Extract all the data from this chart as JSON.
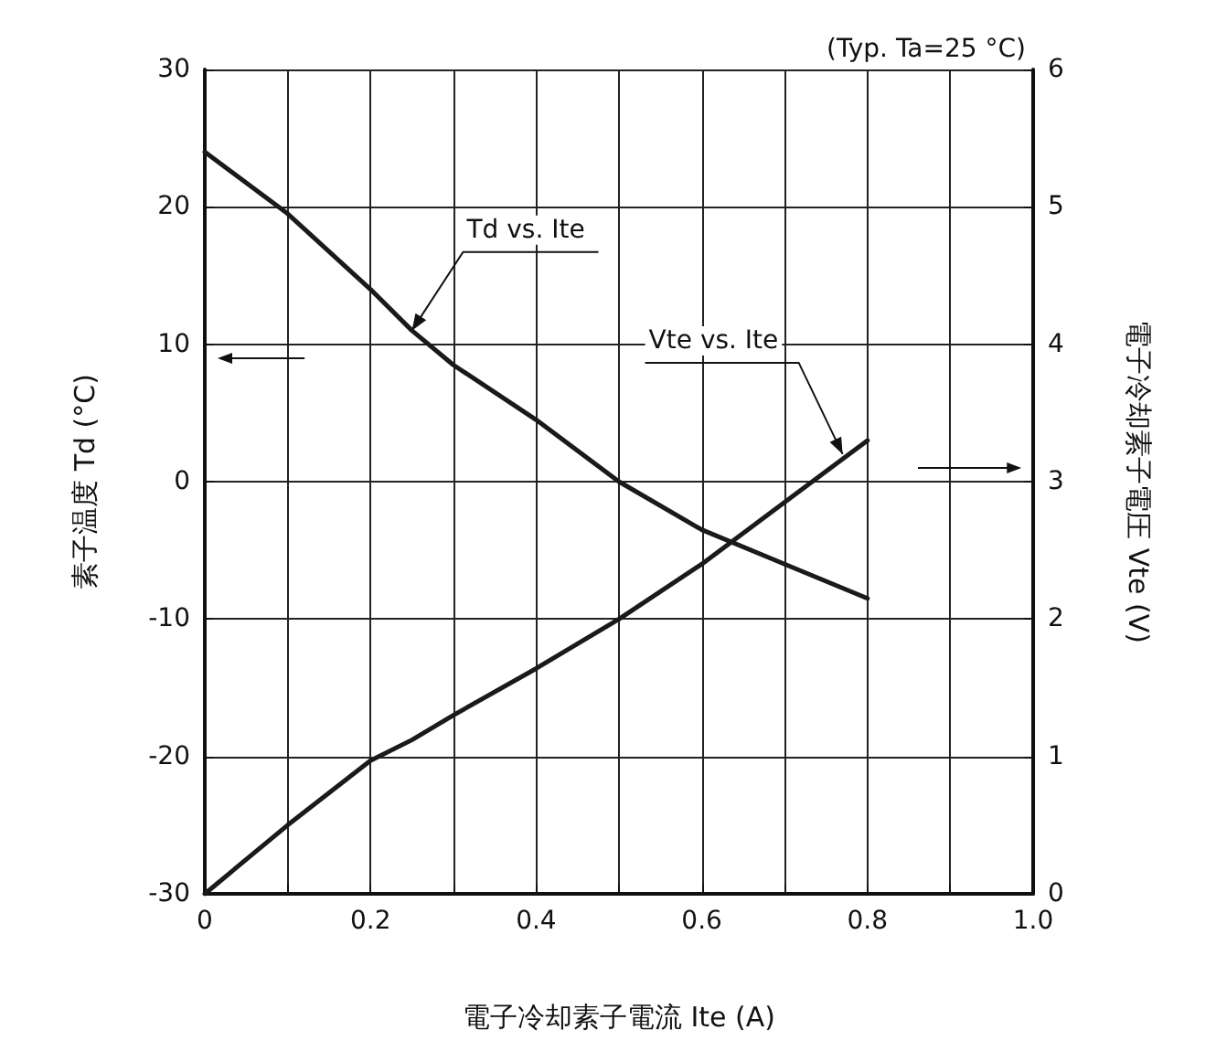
{
  "chart_data": {
    "type": "line",
    "xlabel": "電子冷却素子電流 Ite (A)",
    "ylabel": "素子温度 Td (°C)",
    "y2label": "電子冷却素子電圧 Vte (V)",
    "x": [
      0,
      0.1,
      0.2,
      0.25,
      0.3,
      0.4,
      0.5,
      0.6,
      0.7,
      0.8
    ],
    "series": [
      {
        "color": "#1a1a1a",
        "values": [
          24,
          19.5,
          14,
          11,
          8.5,
          4.5,
          0,
          -3.5,
          -6,
          -8.5
        ]
      },
      {
        "color": "#1a1a1a",
        "axis": "y2",
        "values": [
          0,
          0.5,
          0.97,
          1.12,
          1.3,
          1.64,
          2.0,
          2.4,
          2.85,
          3.3
        ]
      }
    ],
    "xlim": [
      0,
      1
    ],
    "xticks": [
      0,
      {
        "value": 0.1,
        "label": null
      },
      0.2,
      {
        "value": 0.3,
        "label": null
      },
      0.4,
      {
        "value": 0.5,
        "label": null
      },
      0.6,
      {
        "value": 0.7,
        "label": null
      },
      0.8,
      {
        "value": 0.9,
        "label": null
      },
      {
        "value": 1,
        "label": "1.0"
      }
    ],
    "ylim": [
      -30,
      30
    ],
    "yticks": [
      -30,
      -20,
      -10,
      0,
      10,
      20,
      30
    ],
    "y2lim": [
      0,
      6
    ],
    "y2ticks": [
      0,
      1,
      2,
      3,
      4,
      5,
      6
    ],
    "grid": true,
    "marker": "none",
    "line_style": "solid",
    "annotations": [
      {
        "text": "Td vs. Ite",
        "x": 0.25,
        "y": 11
      },
      {
        "text": "Vte vs. Ite",
        "x": 0.77,
        "y": 2
      },
      "(Typ. Ta=25 °C)"
    ]
  }
}
